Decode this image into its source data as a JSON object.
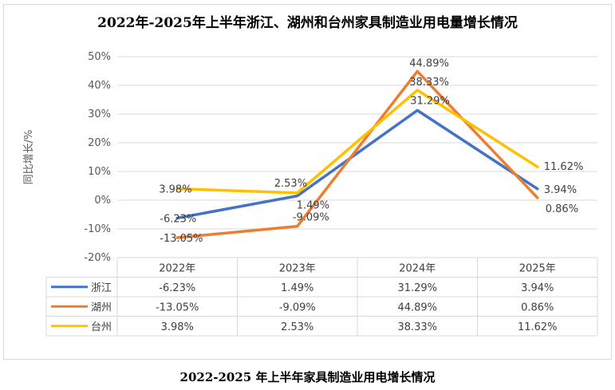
{
  "title": "2022年-2025年上半年浙江、湖州和台州家具制造业用电量增长情况",
  "caption": "2022-2025 年上半年家具制造业用电增长情况",
  "chart_data": {
    "type": "line",
    "title": "2022年-2025年上半年浙江、湖州和台州家具制造业用电量增长情况",
    "ylabel": "同比增长/%",
    "xlabel": "",
    "categories": [
      "2022年",
      "2023年",
      "2024年",
      "2025年"
    ],
    "ylim": [
      -20,
      50
    ],
    "yticks": [
      -20,
      -10,
      0,
      10,
      20,
      30,
      40,
      50
    ],
    "ytick_labels": [
      "-20%",
      "-10%",
      "0%",
      "10%",
      "20%",
      "30%",
      "40%",
      "50%"
    ],
    "grid": true,
    "legend": "data-table",
    "series": [
      {
        "name": "浙江",
        "color": "#4472C4",
        "values": [
          -6.23,
          1.49,
          31.29,
          3.94
        ],
        "labels": [
          "-6.23%",
          "1.49%",
          "31.29%",
          "3.94%"
        ]
      },
      {
        "name": "湖州",
        "color": "#ED7D31",
        "values": [
          -13.05,
          -9.09,
          44.89,
          0.86
        ],
        "labels": [
          "-13.05%",
          "-9.09%",
          "44.89%",
          "0.86%"
        ]
      },
      {
        "name": "台州",
        "color": "#FFC000",
        "values": [
          3.98,
          2.53,
          38.33,
          11.62
        ],
        "labels": [
          "3.98%",
          "2.53%",
          "38.33%",
          "11.62%"
        ]
      }
    ]
  }
}
